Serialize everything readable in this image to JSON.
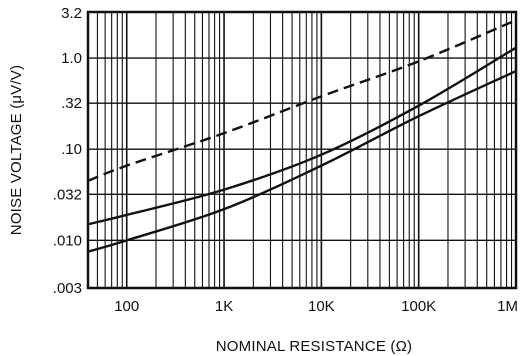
{
  "chart_data": {
    "type": "line",
    "title": "",
    "xlabel": "NOMINAL RESISTANCE (Ω)",
    "ylabel": "NOISE VOLTAGE (μV/V)",
    "xscale": "log",
    "yscale": "log",
    "xlim": [
      40,
      1000000
    ],
    "ylim": [
      0.003,
      3.2
    ],
    "x_ticks": [
      {
        "value": 100,
        "label": "100"
      },
      {
        "value": 1000,
        "label": "1K"
      },
      {
        "value": 10000,
        "label": "10K"
      },
      {
        "value": 100000,
        "label": "100K"
      },
      {
        "value": 1000000,
        "label": "1M"
      }
    ],
    "y_ticks": [
      {
        "value": 3.2,
        "label": "3.2"
      },
      {
        "value": 1.0,
        "label": "1.0"
      },
      {
        "value": 0.32,
        "label": ".32"
      },
      {
        "value": 0.1,
        "label": ".10"
      },
      {
        "value": 0.032,
        "label": ".032"
      },
      {
        "value": 0.01,
        "label": ".010"
      },
      {
        "value": 0.003,
        "label": ".003"
      }
    ],
    "grid": true,
    "line_color": "#111111",
    "series": [
      {
        "style": "dashed",
        "points": [
          [
            40,
            0.045
          ],
          [
            100,
            0.066
          ],
          [
            1000,
            0.15
          ],
          [
            10000,
            0.38
          ],
          [
            100000,
            0.92
          ],
          [
            1000000,
            2.6
          ]
        ]
      },
      {
        "style": "solid",
        "points": [
          [
            40,
            0.015
          ],
          [
            100,
            0.019
          ],
          [
            1000,
            0.036
          ],
          [
            10000,
            0.087
          ],
          [
            100000,
            0.3
          ],
          [
            1000000,
            1.3
          ]
        ]
      },
      {
        "style": "solid",
        "points": [
          [
            40,
            0.0075
          ],
          [
            100,
            0.01
          ],
          [
            1000,
            0.022
          ],
          [
            10000,
            0.066
          ],
          [
            100000,
            0.23
          ],
          [
            1000000,
            0.72
          ]
        ]
      }
    ]
  }
}
